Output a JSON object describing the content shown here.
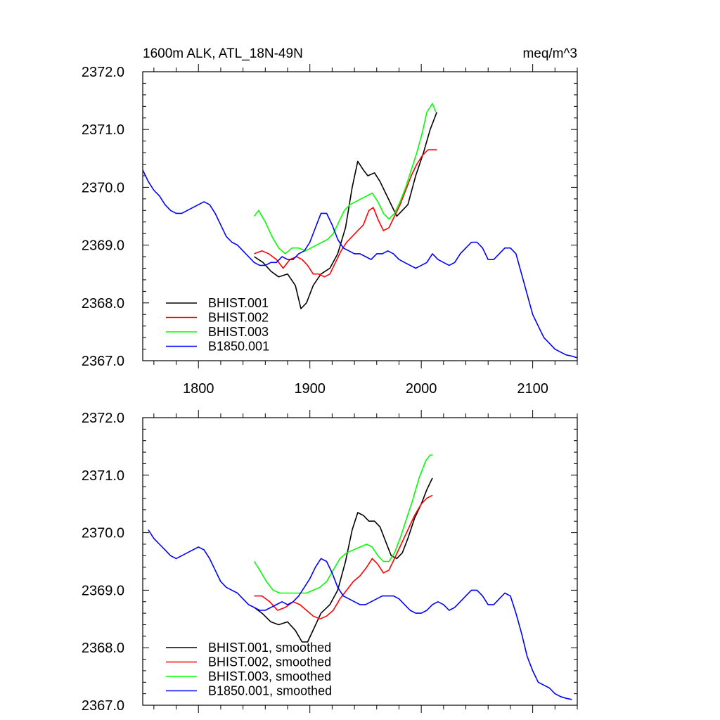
{
  "chart_data": [
    {
      "type": "line",
      "title_left": "1600m ALK, ATL_18N-49N",
      "title_right": "meq/m^3",
      "xlabel": "",
      "ylabel": "",
      "xlim": [
        1750,
        2140
      ],
      "ylim": [
        2367.0,
        2372.0
      ],
      "xticks": [
        1800,
        1900,
        2000,
        2100
      ],
      "xtick_labels": [
        "1800",
        "1900",
        "2000",
        "2100"
      ],
      "yticks": [
        2367.0,
        2368.0,
        2369.0,
        2370.0,
        2371.0,
        2372.0
      ],
      "ytick_labels": [
        "2367.0",
        "2368.0",
        "2369.0",
        "2370.0",
        "2371.0",
        "2372.0"
      ],
      "series": [
        {
          "name": "BHIST.001",
          "color": "#000000",
          "x": [
            1850,
            1858,
            1865,
            1872,
            1880,
            1887,
            1892,
            1897,
            1903,
            1910,
            1918,
            1925,
            1932,
            1938,
            1943,
            1948,
            1952,
            1958,
            1963,
            1968,
            1973,
            1978,
            1983,
            1988,
            1995,
            2002,
            2008,
            2014
          ],
          "y": [
            2368.8,
            2368.7,
            2368.55,
            2368.45,
            2368.5,
            2368.3,
            2367.9,
            2368.0,
            2368.3,
            2368.5,
            2368.6,
            2368.85,
            2369.3,
            2370.0,
            2370.45,
            2370.3,
            2370.2,
            2370.25,
            2370.1,
            2369.9,
            2369.7,
            2369.5,
            2369.6,
            2369.7,
            2370.2,
            2370.6,
            2371.0,
            2371.3
          ]
        },
        {
          "name": "BHIST.002",
          "color": "#ff0000",
          "x": [
            1850,
            1857,
            1863,
            1870,
            1876,
            1882,
            1888,
            1893,
            1898,
            1903,
            1908,
            1913,
            1918,
            1923,
            1928,
            1933,
            1938,
            1943,
            1948,
            1953,
            1957,
            1961,
            1966,
            1971,
            1976,
            1981,
            1986,
            1991,
            1996,
            2001,
            2006,
            2011,
            2014
          ],
          "y": [
            2368.85,
            2368.9,
            2368.85,
            2368.75,
            2368.6,
            2368.75,
            2368.8,
            2368.75,
            2368.65,
            2368.5,
            2368.5,
            2368.45,
            2368.5,
            2368.7,
            2368.9,
            2369.05,
            2369.15,
            2369.25,
            2369.35,
            2369.6,
            2369.65,
            2369.45,
            2369.25,
            2369.3,
            2369.5,
            2369.7,
            2369.95,
            2370.2,
            2370.4,
            2370.55,
            2370.65,
            2370.65,
            2370.65
          ]
        },
        {
          "name": "BHIST.003",
          "color": "#00ff00",
          "x": [
            1850,
            1854,
            1860,
            1866,
            1872,
            1878,
            1884,
            1890,
            1896,
            1901,
            1906,
            1911,
            1916,
            1921,
            1926,
            1931,
            1936,
            1941,
            1946,
            1951,
            1956,
            1961,
            1966,
            1971,
            1976,
            1981,
            1986,
            1991,
            1996,
            2001,
            2005,
            2010,
            2013
          ],
          "y": [
            2369.5,
            2369.6,
            2369.4,
            2369.15,
            2368.95,
            2368.85,
            2368.95,
            2368.95,
            2368.9,
            2368.95,
            2369.0,
            2369.05,
            2369.1,
            2369.2,
            2369.4,
            2369.6,
            2369.7,
            2369.75,
            2369.8,
            2369.85,
            2369.9,
            2369.75,
            2369.55,
            2369.45,
            2369.55,
            2369.75,
            2370.0,
            2370.3,
            2370.6,
            2370.95,
            2371.3,
            2371.45,
            2371.3
          ]
        },
        {
          "name": "B1850.001",
          "color": "#0000ff",
          "x": [
            1750,
            1755,
            1760,
            1765,
            1770,
            1775,
            1780,
            1785,
            1790,
            1795,
            1800,
            1805,
            1810,
            1815,
            1820,
            1825,
            1830,
            1835,
            1840,
            1845,
            1850,
            1855,
            1860,
            1865,
            1870,
            1875,
            1880,
            1885,
            1890,
            1895,
            1900,
            1905,
            1910,
            1915,
            1920,
            1925,
            1930,
            1935,
            1940,
            1945,
            1950,
            1955,
            1960,
            1965,
            1970,
            1975,
            1980,
            1985,
            1990,
            1995,
            2000,
            2005,
            2010,
            2015,
            2020,
            2025,
            2030,
            2035,
            2040,
            2045,
            2050,
            2055,
            2060,
            2065,
            2070,
            2075,
            2080,
            2085,
            2090,
            2095,
            2100,
            2105,
            2110,
            2115,
            2120,
            2125,
            2130,
            2135,
            2140
          ],
          "y": [
            2370.3,
            2370.1,
            2369.95,
            2369.85,
            2369.7,
            2369.6,
            2369.55,
            2369.55,
            2369.6,
            2369.65,
            2369.7,
            2369.75,
            2369.7,
            2369.55,
            2369.35,
            2369.15,
            2369.05,
            2369.0,
            2368.9,
            2368.8,
            2368.7,
            2368.65,
            2368.65,
            2368.7,
            2368.7,
            2368.8,
            2368.75,
            2368.75,
            2368.85,
            2368.9,
            2369.05,
            2369.3,
            2369.55,
            2369.55,
            2369.35,
            2369.1,
            2368.95,
            2368.9,
            2368.85,
            2368.85,
            2368.8,
            2368.75,
            2368.85,
            2368.85,
            2368.9,
            2368.85,
            2368.75,
            2368.7,
            2368.65,
            2368.6,
            2368.65,
            2368.7,
            2368.85,
            2368.75,
            2368.7,
            2368.65,
            2368.7,
            2368.85,
            2368.95,
            2369.05,
            2369.05,
            2368.95,
            2368.75,
            2368.75,
            2368.85,
            2368.95,
            2368.95,
            2368.85,
            2368.5,
            2368.15,
            2367.8,
            2367.6,
            2367.4,
            2367.3,
            2367.2,
            2367.15,
            2367.1,
            2367.08,
            2367.05
          ]
        }
      ],
      "legend_location": "bottom-left"
    },
    {
      "type": "line",
      "title_left": "",
      "title_right": "",
      "xlabel": "",
      "ylabel": "",
      "xlim": [
        1750,
        2140
      ],
      "ylim": [
        2367.0,
        2372.0
      ],
      "xticks": [
        1800,
        1900,
        2000,
        2100
      ],
      "xtick_labels": [],
      "yticks": [
        2367.0,
        2368.0,
        2369.0,
        2370.0,
        2371.0,
        2372.0
      ],
      "ytick_labels": [
        "2367.0",
        "2368.0",
        "2369.0",
        "2370.0",
        "2371.0",
        "2372.0"
      ],
      "series": [
        {
          "name": "BHIST.001, smoothed",
          "color": "#000000",
          "x": [
            1850,
            1857,
            1865,
            1872,
            1880,
            1887,
            1893,
            1898,
            1904,
            1910,
            1918,
            1925,
            1932,
            1938,
            1943,
            1948,
            1953,
            1958,
            1963,
            1968,
            1973,
            1978,
            1983,
            1988,
            1994,
            2000,
            2005,
            2010
          ],
          "y": [
            2368.7,
            2368.6,
            2368.45,
            2368.4,
            2368.45,
            2368.3,
            2368.1,
            2368.1,
            2368.35,
            2368.6,
            2368.75,
            2369.0,
            2369.5,
            2370.05,
            2370.35,
            2370.3,
            2370.2,
            2370.2,
            2370.1,
            2369.85,
            2369.6,
            2369.55,
            2369.65,
            2369.9,
            2370.25,
            2370.5,
            2370.75,
            2370.95
          ]
        },
        {
          "name": "BHIST.002, smoothed",
          "color": "#ff0000",
          "x": [
            1850,
            1857,
            1864,
            1871,
            1878,
            1885,
            1891,
            1897,
            1903,
            1909,
            1915,
            1921,
            1927,
            1933,
            1939,
            1945,
            1951,
            1956,
            1961,
            1966,
            1971,
            1976,
            1982,
            1988,
            1994,
            2000,
            2005,
            2010
          ],
          "y": [
            2368.9,
            2368.9,
            2368.8,
            2368.65,
            2368.7,
            2368.8,
            2368.75,
            2368.65,
            2368.55,
            2368.5,
            2368.55,
            2368.65,
            2368.85,
            2369.0,
            2369.15,
            2369.25,
            2369.4,
            2369.55,
            2369.45,
            2369.3,
            2369.35,
            2369.55,
            2369.8,
            2370.05,
            2370.3,
            2370.5,
            2370.6,
            2370.65
          ]
        },
        {
          "name": "BHIST.003, smoothed",
          "color": "#00ff00",
          "x": [
            1850,
            1855,
            1861,
            1867,
            1873,
            1879,
            1885,
            1891,
            1897,
            1903,
            1909,
            1915,
            1921,
            1927,
            1933,
            1939,
            1945,
            1951,
            1956,
            1961,
            1966,
            1971,
            1976,
            1981,
            1986,
            1992,
            1998,
            2004,
            2008,
            2010
          ],
          "y": [
            2369.5,
            2369.35,
            2369.15,
            2369.0,
            2368.95,
            2368.95,
            2368.95,
            2368.95,
            2368.95,
            2369.0,
            2369.05,
            2369.15,
            2369.35,
            2369.55,
            2369.65,
            2369.7,
            2369.75,
            2369.8,
            2369.75,
            2369.6,
            2369.5,
            2369.5,
            2369.65,
            2369.9,
            2370.2,
            2370.55,
            2370.95,
            2371.25,
            2371.35,
            2371.35
          ]
        },
        {
          "name": "B1850.001, smoothed",
          "color": "#0000ff",
          "x": [
            1755,
            1760,
            1765,
            1770,
            1775,
            1780,
            1785,
            1790,
            1795,
            1800,
            1805,
            1810,
            1815,
            1820,
            1825,
            1830,
            1835,
            1840,
            1845,
            1850,
            1855,
            1860,
            1865,
            1870,
            1875,
            1880,
            1885,
            1890,
            1895,
            1900,
            1905,
            1910,
            1915,
            1920,
            1925,
            1930,
            1935,
            1940,
            1945,
            1950,
            1955,
            1960,
            1965,
            1970,
            1975,
            1980,
            1985,
            1990,
            1995,
            2000,
            2005,
            2010,
            2015,
            2020,
            2025,
            2030,
            2035,
            2040,
            2045,
            2050,
            2055,
            2060,
            2065,
            2070,
            2075,
            2080,
            2085,
            2090,
            2095,
            2100,
            2105,
            2110,
            2115,
            2120,
            2125,
            2130,
            2135
          ],
          "y": [
            2370.05,
            2369.9,
            2369.8,
            2369.7,
            2369.6,
            2369.55,
            2369.6,
            2369.65,
            2369.7,
            2369.75,
            2369.7,
            2369.55,
            2369.35,
            2369.15,
            2369.05,
            2369.0,
            2368.95,
            2368.85,
            2368.75,
            2368.7,
            2368.65,
            2368.65,
            2368.7,
            2368.75,
            2368.8,
            2368.75,
            2368.8,
            2368.9,
            2369.05,
            2369.2,
            2369.4,
            2369.55,
            2369.5,
            2369.3,
            2369.05,
            2368.9,
            2368.85,
            2368.8,
            2368.75,
            2368.75,
            2368.8,
            2368.85,
            2368.9,
            2368.9,
            2368.9,
            2368.85,
            2368.75,
            2368.65,
            2368.6,
            2368.6,
            2368.65,
            2368.75,
            2368.8,
            2368.75,
            2368.65,
            2368.7,
            2368.8,
            2368.9,
            2369.0,
            2369.0,
            2368.9,
            2368.75,
            2368.75,
            2368.85,
            2368.95,
            2368.9,
            2368.6,
            2368.25,
            2367.85,
            2367.6,
            2367.4,
            2367.35,
            2367.3,
            2367.2,
            2367.15,
            2367.12,
            2367.1
          ]
        }
      ],
      "legend_location": "bottom-left"
    }
  ]
}
